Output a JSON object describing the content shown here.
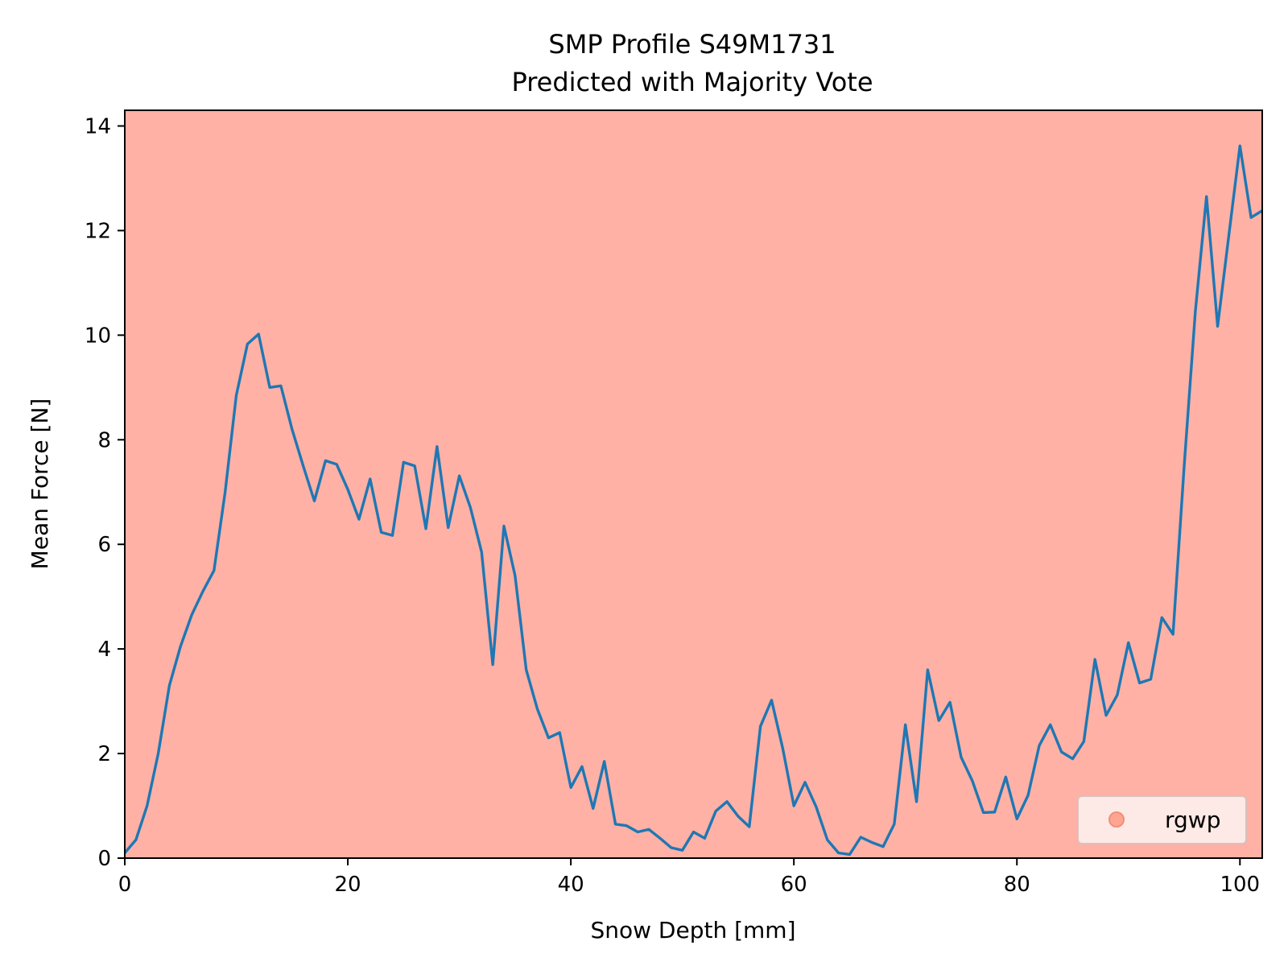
{
  "chart_data": {
    "type": "line",
    "title": "SMP Profile S49M1731",
    "subtitle": "Predicted with Majority Vote",
    "xlabel": "Snow Depth [mm]",
    "ylabel": "Mean Force [N]",
    "xlim": [
      0,
      102
    ],
    "ylim": [
      0,
      14.3
    ],
    "xticks": [
      0,
      20,
      40,
      60,
      80,
      100
    ],
    "yticks": [
      0,
      2,
      4,
      6,
      8,
      10,
      12,
      14
    ],
    "grid": false,
    "legend_position": "lower-right",
    "background_color": "#ffb1a5",
    "line_color": "#1f77b4",
    "legend": [
      {
        "label": "rgwp",
        "color": "#ffa590"
      }
    ],
    "series": [
      {
        "x": [
          0,
          1,
          2,
          3,
          4,
          5,
          6,
          7,
          8,
          9,
          10,
          11,
          12,
          13,
          14,
          15,
          16,
          17,
          18,
          19,
          20,
          21,
          22,
          23,
          24,
          25,
          26,
          27,
          28,
          29,
          30,
          31,
          32,
          33,
          34,
          35,
          36,
          37,
          38,
          39,
          40,
          41,
          42,
          43,
          44,
          45,
          46,
          47,
          48,
          49,
          50,
          51,
          52,
          53,
          54,
          55,
          56,
          57,
          58,
          59,
          60,
          61,
          62,
          63,
          64,
          65,
          66,
          67,
          68,
          69,
          70,
          71,
          72,
          73,
          74,
          75,
          76,
          77,
          78,
          79,
          80,
          81,
          82,
          83,
          84,
          85,
          86,
          87,
          88,
          89,
          90,
          91,
          92,
          93,
          94,
          95,
          96,
          97,
          98,
          99,
          100,
          101,
          102
        ],
        "y": [
          0.1,
          0.35,
          1.0,
          2.0,
          3.3,
          4.05,
          4.65,
          5.1,
          5.5,
          7.0,
          8.85,
          9.83,
          10.02,
          9.0,
          9.03,
          8.2,
          7.5,
          6.83,
          7.6,
          7.53,
          7.05,
          6.48,
          7.25,
          6.23,
          6.17,
          7.57,
          7.5,
          6.3,
          7.87,
          6.32,
          7.31,
          6.7,
          5.85,
          3.7,
          6.35,
          5.4,
          3.6,
          2.85,
          2.3,
          2.4,
          1.35,
          1.75,
          0.95,
          1.85,
          0.65,
          0.62,
          0.5,
          0.55,
          0.38,
          0.2,
          0.15,
          0.5,
          0.38,
          0.9,
          1.08,
          0.8,
          0.6,
          2.52,
          3.02,
          2.1,
          1.0,
          1.45,
          0.98,
          0.35,
          0.1,
          0.07,
          0.4,
          0.3,
          0.22,
          0.65,
          2.55,
          1.08,
          3.6,
          2.63,
          2.98,
          1.93,
          1.48,
          0.87,
          0.88,
          1.55,
          0.75,
          1.2,
          2.15,
          2.55,
          2.03,
          1.9,
          2.23,
          3.8,
          2.73,
          3.12,
          4.12,
          3.35,
          3.42,
          4.6,
          4.28,
          7.5,
          10.45,
          12.65,
          10.17,
          11.9,
          13.62,
          12.25,
          12.38
        ]
      }
    ]
  }
}
